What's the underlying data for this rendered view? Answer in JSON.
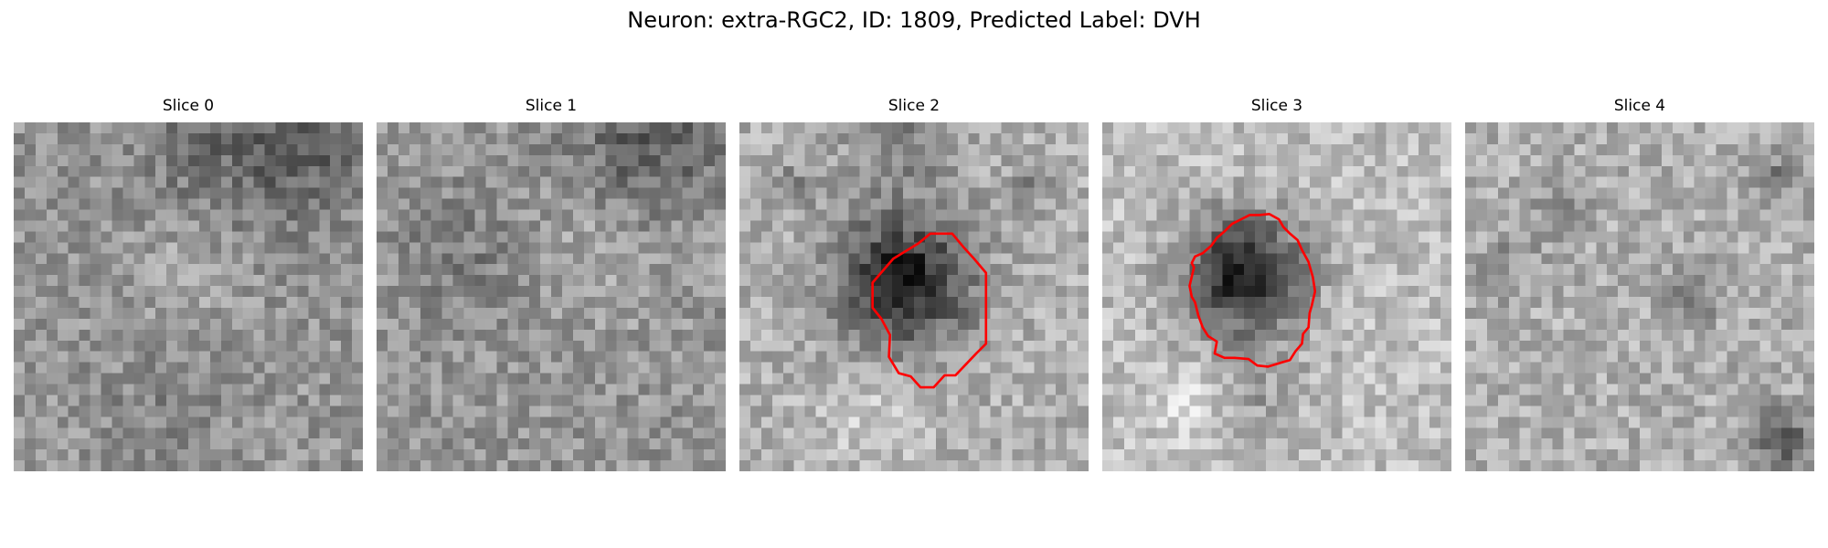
{
  "figure": {
    "title": "Neuron: extra-RGC2, ID: 1809, Predicted Label: DVH"
  },
  "panels": [
    {
      "label": "Slice 0",
      "has_contour": false
    },
    {
      "label": "Slice 1",
      "has_contour": false
    },
    {
      "label": "Slice 2",
      "has_contour": true
    },
    {
      "label": "Slice 3",
      "has_contour": true
    },
    {
      "label": "Slice 4",
      "has_contour": false
    }
  ],
  "colors": {
    "background": "#ffffff",
    "contour": "#ff0000",
    "colormap": "gray"
  }
}
